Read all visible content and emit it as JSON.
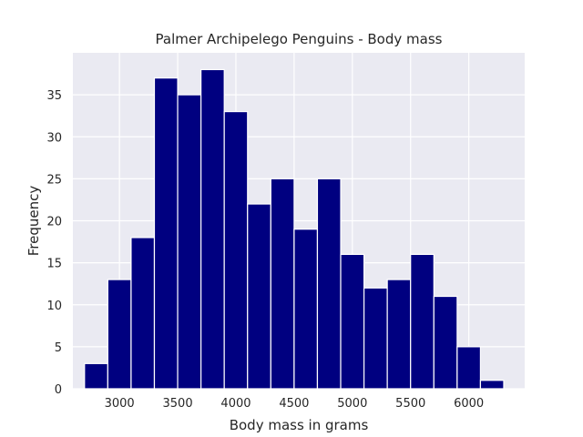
{
  "chart_data": {
    "type": "bar",
    "title": "Palmer Archipelego Penguins - Body mass",
    "xlabel": "Body mass in grams",
    "ylabel": "Frequency",
    "bin_edges": [
      2700,
      2900,
      3100,
      3300,
      3500,
      3700,
      3900,
      4100,
      4300,
      4500,
      4700,
      4900,
      5100,
      5300,
      5500,
      5700,
      5900,
      6100,
      6300
    ],
    "values": [
      3,
      13,
      18,
      37,
      35,
      38,
      33,
      22,
      25,
      19,
      25,
      16,
      12,
      13,
      16,
      11,
      5,
      1
    ],
    "xlim": [
      2600,
      6480
    ],
    "ylim": [
      0,
      40
    ],
    "x_ticks": [
      3000,
      3500,
      4000,
      4500,
      5000,
      5500,
      6000
    ],
    "y_ticks": [
      0,
      5,
      10,
      15,
      20,
      25,
      30,
      35
    ],
    "grid": true,
    "colors": {
      "bar": "#000080",
      "bar_edge": "#ffffff",
      "plot_background": "#eaeaf2",
      "grid": "#ffffff",
      "text": "#262626"
    }
  }
}
